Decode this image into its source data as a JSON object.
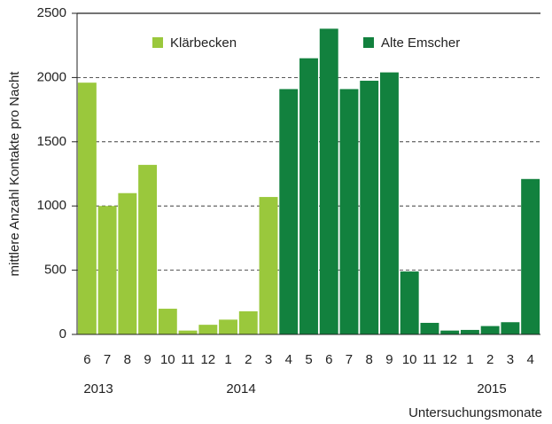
{
  "chart_data": {
    "type": "bar",
    "ylabel": "mittlere Anzahl Kontakte pro Nacht",
    "xlabel": "Untersuchungsmonate",
    "categories": [
      "6",
      "7",
      "8",
      "9",
      "10",
      "11",
      "12",
      "1",
      "2",
      "3",
      "4",
      "5",
      "6",
      "7",
      "8",
      "9",
      "10",
      "11",
      "12",
      "1",
      "2",
      "3",
      "4"
    ],
    "year_labels": [
      "2013",
      "2014",
      "2015"
    ],
    "series": [
      {
        "name": "Klärbecken",
        "color": "#9ac83c",
        "values": [
          1960,
          1000,
          1100,
          1320,
          200,
          30,
          75,
          115,
          180,
          1070,
          null,
          null,
          null,
          null,
          null,
          null,
          null,
          null,
          null,
          null,
          null,
          null,
          null
        ]
      },
      {
        "name": "Alte Emscher",
        "color": "#12813e",
        "values": [
          null,
          null,
          null,
          null,
          null,
          null,
          null,
          null,
          null,
          null,
          1910,
          2150,
          2380,
          1910,
          1975,
          2040,
          490,
          90,
          30,
          35,
          65,
          95,
          1210
        ]
      }
    ],
    "ylim": [
      0,
      2500
    ],
    "yticks": [
      0,
      500,
      1000,
      1500,
      2000,
      2500
    ],
    "grid": true
  }
}
